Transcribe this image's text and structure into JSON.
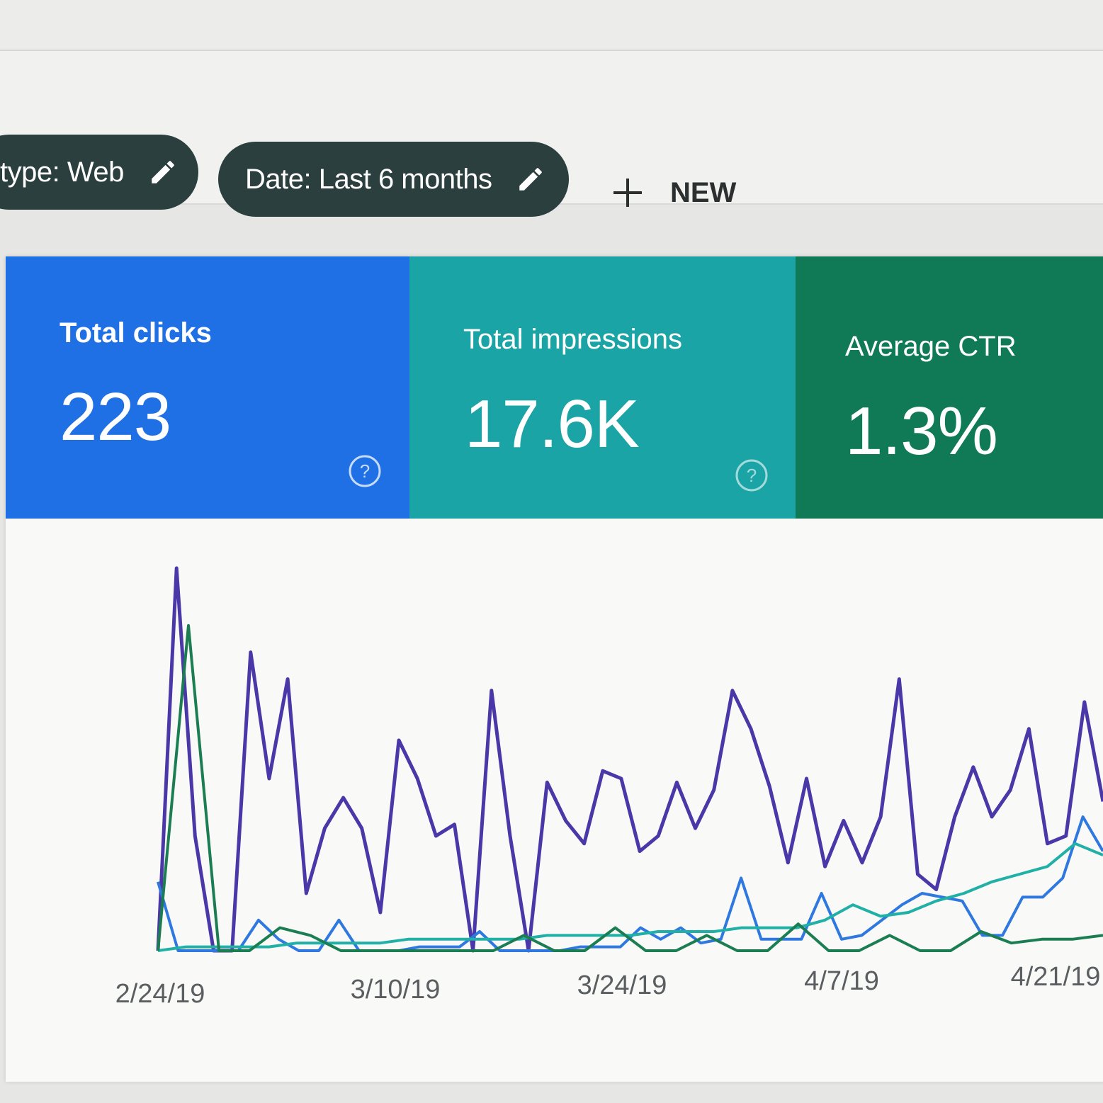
{
  "colors": {
    "clicks": "#1f6fe5",
    "impressions": "#1ba4a6",
    "ctr": "#0f7a55",
    "chip": "#2a3f3e",
    "line_impressions": "#4a38a8",
    "line_clicks": "#2e78e0",
    "line_ctr_light": "#20b0a5",
    "line_ctr": "#1b7e52"
  },
  "filters": {
    "chips": [
      {
        "label": "type: Web",
        "icon": "pencil-icon"
      },
      {
        "label": "Date: Last 6 months",
        "icon": "pencil-icon"
      }
    ],
    "new_label": "NEW",
    "new_icon": "plus-icon"
  },
  "metrics": [
    {
      "label": "Total clicks",
      "value": "223",
      "icon": "help-circle-icon"
    },
    {
      "label": "Total impressions",
      "value": "17.6K",
      "icon": "help-circle-icon"
    },
    {
      "label": "Average CTR",
      "value": "1.3%"
    }
  ],
  "chart_data": {
    "type": "line",
    "x_ticks": [
      "2/24/19",
      "3/10/19",
      "3/24/19",
      "4/7/19",
      "4/21/19"
    ],
    "grid": false,
    "legend": "none",
    "series": [
      {
        "color_key": "line_impressions",
        "values": [
          0.0,
          1.0,
          0.3,
          0.0,
          0.0,
          0.78,
          0.45,
          0.71,
          0.15,
          0.32,
          0.4,
          0.32,
          0.1,
          0.55,
          0.45,
          0.3,
          0.33,
          0.0,
          0.68,
          0.3,
          0.0,
          0.44,
          0.34,
          0.28,
          0.47,
          0.45,
          0.26,
          0.3,
          0.44,
          0.32,
          0.42,
          0.68,
          0.58,
          0.43,
          0.23,
          0.45,
          0.22,
          0.34,
          0.23,
          0.35,
          0.71,
          0.2,
          0.16,
          0.35,
          0.48,
          0.35,
          0.42,
          0.58,
          0.28,
          0.3,
          0.65,
          0.39
        ]
      },
      {
        "color_key": "line_clicks",
        "values": [
          0.18,
          0.0,
          0.0,
          0.0,
          0.0,
          0.08,
          0.03,
          0.0,
          0.0,
          0.08,
          0.0,
          0.0,
          0.0,
          0.01,
          0.01,
          0.01,
          0.05,
          0.0,
          0.0,
          0.0,
          0.0,
          0.01,
          0.01,
          0.01,
          0.06,
          0.03,
          0.06,
          0.02,
          0.03,
          0.19,
          0.03,
          0.03,
          0.03,
          0.15,
          0.03,
          0.04,
          0.08,
          0.12,
          0.15,
          0.14,
          0.13,
          0.04,
          0.04,
          0.14,
          0.14,
          0.19,
          0.35,
          0.26
        ]
      },
      {
        "color_key": "line_ctr_light",
        "values": [
          0.0,
          0.01,
          0.01,
          0.01,
          0.01,
          0.02,
          0.02,
          0.02,
          0.02,
          0.03,
          0.03,
          0.03,
          0.03,
          0.03,
          0.04,
          0.04,
          0.04,
          0.04,
          0.05,
          0.05,
          0.05,
          0.06,
          0.06,
          0.06,
          0.08,
          0.12,
          0.09,
          0.1,
          0.13,
          0.15,
          0.18,
          0.2,
          0.22,
          0.28,
          0.25
        ]
      },
      {
        "color_key": "line_ctr",
        "values": [
          0.0,
          0.85,
          0.0,
          0.0,
          0.06,
          0.04,
          0.0,
          0.0,
          0.0,
          0.0,
          0.0,
          0.0,
          0.04,
          0.0,
          0.0,
          0.06,
          0.0,
          0.0,
          0.04,
          0.0,
          0.0,
          0.07,
          0.0,
          0.0,
          0.04,
          0.0,
          0.0,
          0.05,
          0.02,
          0.03,
          0.03,
          0.04
        ]
      }
    ]
  }
}
